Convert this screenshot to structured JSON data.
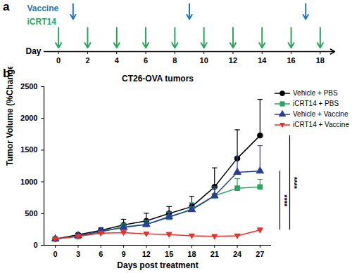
{
  "chart_data": [
    {
      "panel": "a",
      "type": "timeline",
      "xlabel": "Day",
      "xlim": [
        -1,
        19
      ],
      "xticks": [
        0,
        2,
        4,
        6,
        8,
        10,
        12,
        14,
        16,
        18
      ],
      "series": [
        {
          "name": "Vaccine",
          "color": "#2479b5",
          "x": [
            1,
            9,
            17
          ]
        },
        {
          "name": "iCRT14",
          "color": "#2ca25f",
          "x": [
            0,
            2,
            4,
            6,
            8,
            10,
            12,
            14,
            16,
            18
          ]
        }
      ]
    },
    {
      "panel": "b",
      "type": "line",
      "title": "CT26-OVA tumors",
      "xlabel": "Days post treatment",
      "ylabel": "Tumor Volume (%Change)",
      "x": [
        0,
        3,
        6,
        9,
        12,
        15,
        18,
        21,
        24,
        27
      ],
      "xlim": [
        -1.5,
        28.5
      ],
      "xticks": [
        0,
        3,
        6,
        9,
        12,
        15,
        18,
        21,
        24,
        27
      ],
      "ylim": [
        0,
        2500
      ],
      "yticks": [
        0,
        500,
        1000,
        1500,
        2000,
        2500
      ],
      "legend": "right",
      "series": [
        {
          "name": "Vehicle + PBS",
          "color": "#000000",
          "marker": "circle",
          "values": [
            100,
            165,
            235,
            320,
            385,
            500,
            610,
            920,
            1370,
            1730
          ],
          "errors": [
            0,
            25,
            40,
            90,
            120,
            110,
            160,
            300,
            450,
            570
          ]
        },
        {
          "name": "iCRT14 + PBS",
          "color": "#2ca25f",
          "marker": "square",
          "values": [
            100,
            140,
            210,
            290,
            330,
            440,
            570,
            780,
            900,
            920
          ],
          "errors": [
            0,
            20,
            30,
            50,
            60,
            80,
            100,
            120,
            150,
            120
          ]
        },
        {
          "name": "Vehicle + Vaccine",
          "color": "#2c3e94",
          "marker": "triangle",
          "values": [
            100,
            150,
            220,
            280,
            330,
            450,
            560,
            780,
            1150,
            1170
          ],
          "errors": [
            0,
            20,
            30,
            50,
            70,
            80,
            100,
            150,
            250,
            400
          ]
        },
        {
          "name": "iCRT14 + Vaccine",
          "color": "#e8312a",
          "marker": "triangle-down",
          "values": [
            100,
            140,
            190,
            200,
            180,
            170,
            150,
            140,
            150,
            240
          ],
          "errors": [
            0,
            10,
            20,
            40,
            30,
            30,
            20,
            20,
            20,
            30
          ]
        }
      ],
      "significance": [
        {
          "label": "****",
          "y": [
            240,
            1170
          ]
        },
        {
          "label": "****",
          "y": [
            240,
            1730
          ]
        }
      ]
    }
  ]
}
